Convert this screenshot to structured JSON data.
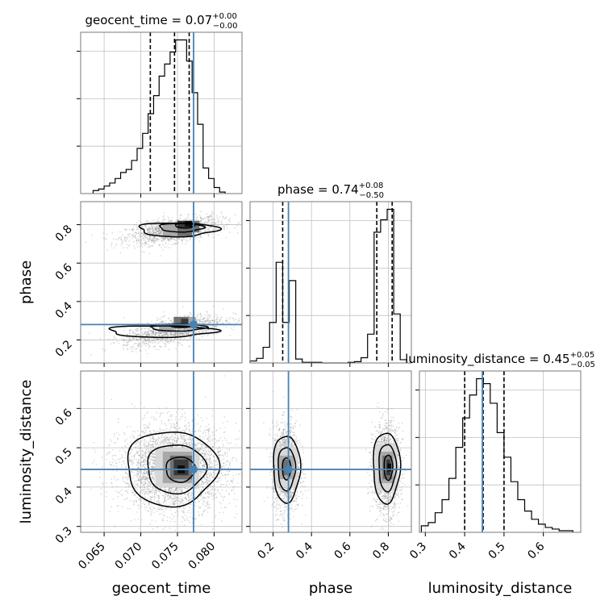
{
  "chart_data": {
    "type": "corner",
    "parameters": [
      "geocent_time",
      "phase",
      "luminosity_distance"
    ],
    "ranges": {
      "geocent_time": [
        0.0618,
        0.0838
      ],
      "phase": [
        0.08,
        0.92
      ],
      "luminosity_distance": [
        0.285,
        0.695
      ]
    },
    "truths": {
      "geocent_time": 0.0772,
      "phase": 0.28,
      "luminosity_distance": 0.445
    },
    "ticks": {
      "geocent_time": [
        "0.065",
        "0.070",
        "0.075",
        "0.080"
      ],
      "phase": [
        "0.2",
        "0.4",
        "0.6",
        "0.8"
      ],
      "luminosity_distance": [
        "0.3",
        "0.4",
        "0.5",
        "0.6"
      ]
    },
    "titles": [
      {
        "param": "geocent_time",
        "label": "geocent_time = 0.07",
        "upper": "+0.00",
        "lower": "−0.00"
      },
      {
        "param": "phase",
        "label": "phase = 0.74",
        "upper": "+0.08",
        "lower": "−0.50"
      },
      {
        "param": "luminosity_distance",
        "label": "luminosity_distance = 0.45",
        "upper": "+0.05",
        "lower": "−0.05"
      }
    ],
    "quantiles": {
      "geocent_time": [
        0.0713,
        0.0746,
        0.0766
      ],
      "phase": [
        0.25,
        0.74,
        0.82
      ],
      "luminosity_distance": [
        0.4,
        0.447,
        0.5
      ]
    },
    "histograms": {
      "geocent_time": {
        "edges": [
          0.0635,
          0.06425,
          0.065,
          0.06575,
          0.0665,
          0.06725,
          0.068,
          0.06875,
          0.0695,
          0.07025,
          0.071,
          0.07175,
          0.0725,
          0.07325,
          0.074,
          0.07475,
          0.0755,
          0.07625,
          0.077,
          0.07775,
          0.0785,
          0.07925,
          0.08,
          0.08075,
          0.0815
        ],
        "counts": [
          2,
          3,
          5,
          7,
          10,
          14,
          16,
          22,
          30,
          40,
          53,
          65,
          78,
          86,
          94,
          102,
          102,
          88,
          67,
          46,
          17,
          10,
          4,
          1
        ]
      },
      "phase": {
        "edges": [
          0.08,
          0.114,
          0.148,
          0.182,
          0.216,
          0.25,
          0.284,
          0.318,
          0.352,
          0.386,
          0.42,
          0.454,
          0.488,
          0.522,
          0.556,
          0.59,
          0.624,
          0.658,
          0.692,
          0.726,
          0.76,
          0.794,
          0.828,
          0.862,
          0.896
        ],
        "counts": [
          3,
          7,
          24,
          62,
          154,
          62,
          126,
          6,
          1,
          1,
          1,
          0,
          0,
          0,
          0,
          1,
          2,
          8,
          44,
          200,
          219,
          235,
          75,
          5
        ]
      },
      "luminosity_distance": {
        "edges": [
          0.29,
          0.3075,
          0.325,
          0.3425,
          0.36,
          0.3775,
          0.395,
          0.4125,
          0.43,
          0.4475,
          0.465,
          0.4825,
          0.5,
          0.5175,
          0.535,
          0.5525,
          0.57,
          0.5875,
          0.605,
          0.6225,
          0.64,
          0.6575,
          0.675
        ],
        "counts": [
          4,
          6,
          12,
          20,
          33,
          52,
          70,
          84,
          94,
          91,
          79,
          61,
          46,
          31,
          20,
          13,
          8,
          5,
          3,
          2,
          1,
          1
        ]
      }
    },
    "grid": true,
    "colors": {
      "truth": "#4682b4",
      "line": "#000000",
      "grid": "#c0c0c0",
      "points": "#8a8a8a",
      "density": [
        "#d8d8d8",
        "#a8a8a8",
        "#6f6f6f",
        "#383838",
        "#0c0c0c"
      ]
    }
  }
}
